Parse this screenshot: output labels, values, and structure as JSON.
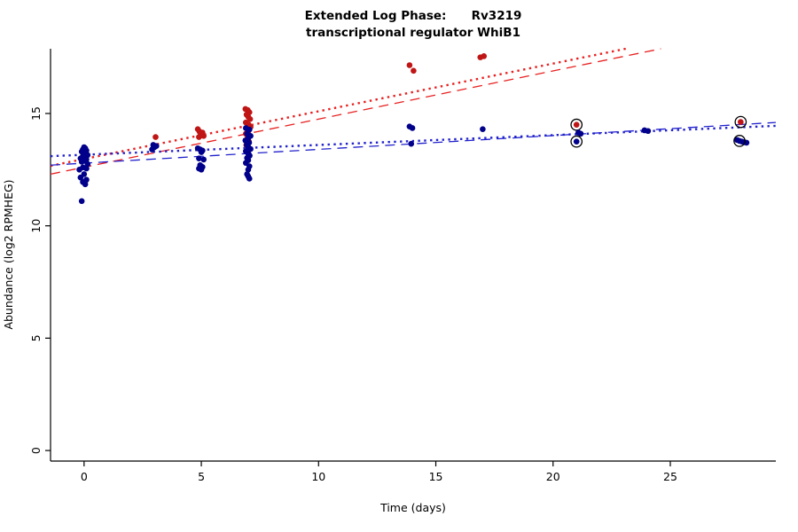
{
  "chart_data": {
    "type": "scatter",
    "title": "Extended Log Phase:      Rv3219",
    "subtitle": "transcriptional regulator WhiB1",
    "xlabel": "Time  (days)",
    "ylabel": "Abundance  (log2 RPMHEG)",
    "xlim": [
      -1.43,
      29.5
    ],
    "ylim": [
      -0.47,
      17.88
    ],
    "xticks": [
      0,
      5,
      10,
      15,
      20,
      25
    ],
    "yticks": [
      0,
      5,
      10,
      15
    ],
    "grid": false,
    "legend": "none",
    "point_colors": {
      "red_series": "#c01515",
      "blue_series": "#00008b"
    },
    "line_colors": {
      "red": "#e82020",
      "blue": "#2121cd"
    },
    "series": [
      {
        "name": "red-series",
        "color": "#c01515",
        "points": [
          [
            3.05,
            13.95
          ],
          [
            4.85,
            14.3
          ],
          [
            4.92,
            14.2
          ],
          [
            4.98,
            14.1
          ],
          [
            5.05,
            14.15
          ],
          [
            5.1,
            14.0
          ],
          [
            4.9,
            13.95
          ],
          [
            5.0,
            14.05
          ],
          [
            6.88,
            15.2
          ],
          [
            6.98,
            15.15
          ],
          [
            7.05,
            15.05
          ],
          [
            6.93,
            14.95
          ],
          [
            7.0,
            14.85
          ],
          [
            7.08,
            14.75
          ],
          [
            6.9,
            14.6
          ],
          [
            7.02,
            14.5
          ],
          [
            7.1,
            14.4
          ],
          [
            6.95,
            14.3
          ],
          [
            7.0,
            14.2
          ],
          [
            6.9,
            14.1
          ],
          [
            7.05,
            14.0
          ],
          [
            6.97,
            13.9
          ],
          [
            7.03,
            13.75
          ],
          [
            6.92,
            13.6
          ],
          [
            7.0,
            13.5
          ],
          [
            13.88,
            17.15
          ],
          [
            14.05,
            16.9
          ],
          [
            16.9,
            17.5
          ],
          [
            17.05,
            17.55
          ],
          [
            21.0,
            14.5
          ],
          [
            28.0,
            14.62
          ]
        ],
        "circled": [
          [
            21.0,
            14.5
          ],
          [
            28.0,
            14.62
          ]
        ]
      },
      {
        "name": "blue-series",
        "color": "#00008b",
        "points": [
          [
            -0.1,
            11.1
          ],
          [
            0.05,
            11.85
          ],
          [
            -0.05,
            11.95
          ],
          [
            0.1,
            12.05
          ],
          [
            -0.15,
            12.15
          ],
          [
            0.0,
            12.3
          ],
          [
            -0.2,
            12.5
          ],
          [
            0.1,
            12.55
          ],
          [
            -0.05,
            12.6
          ],
          [
            0.15,
            12.75
          ],
          [
            -0.1,
            12.85
          ],
          [
            0.0,
            12.9
          ],
          [
            0.1,
            12.95
          ],
          [
            -0.15,
            13.0
          ],
          [
            0.05,
            13.05
          ],
          [
            -0.05,
            13.1
          ],
          [
            0.15,
            13.15
          ],
          [
            0.0,
            13.2
          ],
          [
            -0.1,
            13.3
          ],
          [
            0.1,
            13.35
          ],
          [
            -0.05,
            13.4
          ],
          [
            0.05,
            13.45
          ],
          [
            0.0,
            13.5
          ],
          [
            2.9,
            13.4
          ],
          [
            3.0,
            13.5
          ],
          [
            3.08,
            13.55
          ],
          [
            2.95,
            13.6
          ],
          [
            4.85,
            13.45
          ],
          [
            4.95,
            13.4
          ],
          [
            5.05,
            13.35
          ],
          [
            5.0,
            13.28
          ],
          [
            4.9,
            13.0
          ],
          [
            5.1,
            12.95
          ],
          [
            4.95,
            12.7
          ],
          [
            5.05,
            12.62
          ],
          [
            4.9,
            12.55
          ],
          [
            5.0,
            12.5
          ],
          [
            6.9,
            14.35
          ],
          [
            7.05,
            14.28
          ],
          [
            6.95,
            14.1
          ],
          [
            7.1,
            14.0
          ],
          [
            7.0,
            13.9
          ],
          [
            6.88,
            13.8
          ],
          [
            7.04,
            13.7
          ],
          [
            6.94,
            13.6
          ],
          [
            7.0,
            13.5
          ],
          [
            7.1,
            13.42
          ],
          [
            6.9,
            13.32
          ],
          [
            7.0,
            13.22
          ],
          [
            7.06,
            13.12
          ],
          [
            6.95,
            13.02
          ],
          [
            7.0,
            12.92
          ],
          [
            6.9,
            12.8
          ],
          [
            7.05,
            12.65
          ],
          [
            7.0,
            12.5
          ],
          [
            6.95,
            12.3
          ],
          [
            7.0,
            12.2
          ],
          [
            7.05,
            12.1
          ],
          [
            13.88,
            14.42
          ],
          [
            14.0,
            14.35
          ],
          [
            13.95,
            13.65
          ],
          [
            17.0,
            14.3
          ],
          [
            21.0,
            13.75
          ],
          [
            21.08,
            14.15
          ],
          [
            21.18,
            14.1
          ],
          [
            23.9,
            14.25
          ],
          [
            24.05,
            14.22
          ],
          [
            27.85,
            13.82
          ],
          [
            27.95,
            13.78
          ],
          [
            28.05,
            13.75
          ],
          [
            28.15,
            13.72
          ],
          [
            28.25,
            13.7
          ]
        ],
        "circled": [
          [
            21.0,
            13.75
          ],
          [
            27.95,
            13.78
          ]
        ]
      }
    ],
    "lines": [
      {
        "name": "red-dotted-fit",
        "color": "#e82020",
        "style": "dotted",
        "width": 2.4,
        "x": [
          -1.43,
          23.1
        ],
        "y": [
          12.67,
          17.88
        ]
      },
      {
        "name": "red-dashed-fit",
        "color": "#e82020",
        "style": "dashed",
        "width": 1.3,
        "x": [
          -1.43,
          24.6
        ],
        "y": [
          12.3,
          17.88
        ]
      },
      {
        "name": "blue-dotted-fit",
        "color": "#2121cd",
        "style": "dotted",
        "width": 2.4,
        "x": [
          -1.43,
          29.5
        ],
        "y": [
          13.1,
          14.45
        ]
      },
      {
        "name": "blue-dashed-fit",
        "color": "#2121cd",
        "style": "dashed",
        "width": 1.3,
        "x": [
          -1.43,
          29.5
        ],
        "y": [
          12.7,
          14.6
        ]
      }
    ]
  }
}
